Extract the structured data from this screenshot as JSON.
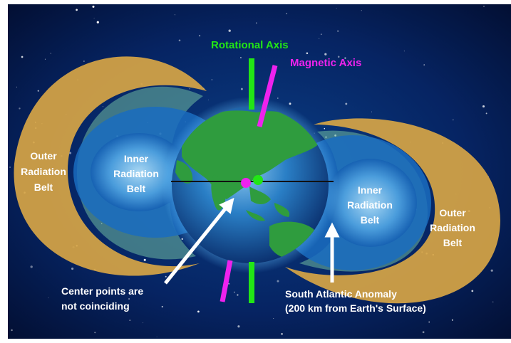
{
  "labels": {
    "rotational_axis": "Rotational Axis",
    "magnetic_axis": "Magnetic Axis",
    "outer_left": [
      "Outer",
      "Radiation",
      "Belt"
    ],
    "inner_left": [
      "Inner",
      "Radiation",
      "Belt"
    ],
    "inner_right": [
      "Inner",
      "Radiation",
      "Belt"
    ],
    "outer_right": [
      "Outer",
      "Radiation",
      "Belt"
    ],
    "center_points": [
      "Center points are",
      "not coinciding"
    ],
    "saa": [
      "South Atlantic Anomaly",
      "(200 km from Earth's Surface)"
    ]
  },
  "colors": {
    "space": "#04123a",
    "outer_belt": "#d7a545",
    "inner_belt_glow": "#4fa3e0",
    "earth_ocean": "#1f6db5",
    "earth_land": "#2f9c3e",
    "rotational_axis": "#22e615",
    "magnetic_axis": "#ee22ee",
    "equator_line": "#111111",
    "arrow": "#ffffff",
    "rotational_center_dot": "#22e615",
    "magnetic_center_dot": "#ee22ee"
  }
}
